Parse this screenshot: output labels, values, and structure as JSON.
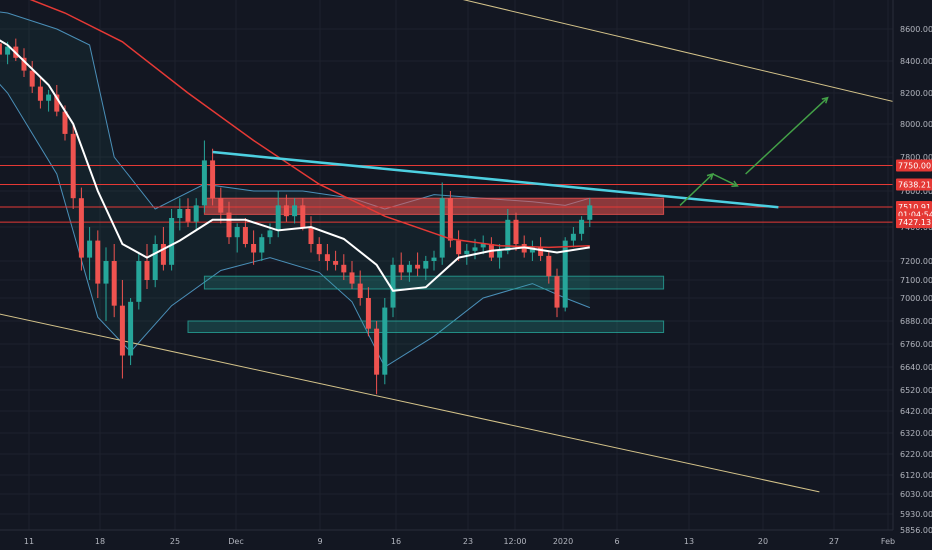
{
  "chart_data": {
    "type": "candlestick",
    "x_ticks": [
      "11",
      "18",
      "25",
      "Dec",
      "9",
      "16",
      "23",
      "12:00",
      "2020",
      "6",
      "13",
      "20",
      "27",
      "Feb"
    ],
    "y_ticks": [
      8600,
      8400,
      8200,
      8000,
      7800,
      7600,
      7400,
      7200,
      7100,
      7000,
      6880,
      6760,
      6640,
      6520,
      6420,
      6320,
      6220,
      6120,
      6030,
      5930,
      5856
    ],
    "y_tick_labels": [
      "8600.00",
      "8400.00",
      "8200.00",
      "8000.00",
      "7800.00",
      "7600.00",
      "7400.00",
      "7200.00",
      "7100.00",
      "7000.00",
      "6880.00",
      "6760.00",
      "6640.00",
      "6520.00",
      "6420.00",
      "6320.00",
      "6220.00",
      "6120.00",
      "6030.00",
      "5930.00",
      "5856.00"
    ],
    "price_badges": [
      {
        "label": "7750.00",
        "value": 7750,
        "color": "#e53935"
      },
      {
        "label": "7638.21",
        "value": 7638,
        "color": "#e53935"
      },
      {
        "label": "7510.91",
        "value": 7511,
        "color": "#e53935"
      },
      {
        "label": "01:04:54",
        "value": 7470,
        "color": "#e53935"
      },
      {
        "label": "7427.13",
        "value": 7427,
        "color": "#e53935"
      }
    ],
    "resistance_levels": [
      7750,
      7638,
      7511,
      7427
    ],
    "zones": [
      {
        "kind": "resistance",
        "from_day": 22,
        "to_day": 78,
        "low": 7470,
        "high": 7560,
        "color": "#ef5350"
      },
      {
        "kind": "support",
        "from_day": 22,
        "to_day": 78,
        "low": 7050,
        "high": 7120,
        "color": "#26a69a"
      },
      {
        "kind": "support",
        "from_day": 20,
        "to_day": 78,
        "low": 6820,
        "high": 6880,
        "color": "#26a69a"
      }
    ],
    "trendline": {
      "from": [
        23,
        7830
      ],
      "to": [
        92,
        7510
      ],
      "color": "#4dd0e1"
    },
    "channel_upper": {
      "from": [
        44,
        8900
      ],
      "to": [
        132,
        7830
      ],
      "color": "#d4c38a"
    },
    "channel_lower": {
      "from": [
        -12,
        7000
      ],
      "to": [
        97,
        6040
      ],
      "color": "#d4c38a"
    },
    "projection_arrows": [
      [
        [
          80,
          7520
        ],
        [
          84,
          7700
        ]
      ],
      [
        [
          84,
          7700
        ],
        [
          87,
          7630
        ]
      ],
      [
        [
          88,
          7700
        ],
        [
          98,
          8170
        ]
      ]
    ],
    "projection_color": "#43a047",
    "candles": [
      [
        -10,
        8700,
        8760,
        8640,
        8690
      ],
      [
        -9,
        8690,
        8720,
        8600,
        8650
      ],
      [
        -8,
        8650,
        8700,
        8560,
        8620
      ],
      [
        -7,
        8620,
        8680,
        8580,
        8600
      ],
      [
        -6,
        8600,
        8650,
        8520,
        8540
      ],
      [
        -5,
        8540,
        8600,
        8480,
        8580
      ],
      [
        -4,
        8580,
        8620,
        8500,
        8510
      ],
      [
        -3,
        8510,
        8560,
        8400,
        8440
      ],
      [
        -2,
        8440,
        8520,
        8380,
        8490
      ],
      [
        -1,
        8490,
        8540,
        8400,
        8420
      ],
      [
        0,
        8420,
        8480,
        8300,
        8340
      ],
      [
        1,
        8340,
        8400,
        8200,
        8240
      ],
      [
        2,
        8240,
        8300,
        8100,
        8150
      ],
      [
        3,
        8150,
        8220,
        8080,
        8190
      ],
      [
        4,
        8190,
        8250,
        8050,
        8080
      ],
      [
        5,
        8080,
        8120,
        7900,
        7940
      ],
      [
        6,
        7940,
        8000,
        7500,
        7560
      ],
      [
        7,
        7560,
        7620,
        7150,
        7220
      ],
      [
        8,
        7220,
        7400,
        7100,
        7320
      ],
      [
        9,
        7320,
        7380,
        7000,
        7080
      ],
      [
        10,
        7080,
        7280,
        6880,
        7200
      ],
      [
        11,
        7200,
        7300,
        6900,
        6960
      ],
      [
        12,
        6960,
        7100,
        6580,
        6700
      ],
      [
        13,
        6700,
        7000,
        6650,
        6980
      ],
      [
        14,
        6980,
        7250,
        6940,
        7200
      ],
      [
        15,
        7200,
        7300,
        7050,
        7100
      ],
      [
        16,
        7100,
        7350,
        7060,
        7300
      ],
      [
        17,
        7300,
        7400,
        7150,
        7180
      ],
      [
        18,
        7180,
        7500,
        7150,
        7450
      ],
      [
        19,
        7450,
        7560,
        7380,
        7500
      ],
      [
        20,
        7500,
        7560,
        7400,
        7430
      ],
      [
        21,
        7430,
        7560,
        7380,
        7520
      ],
      [
        22,
        7520,
        7900,
        7480,
        7780
      ],
      [
        23,
        7780,
        7850,
        7520,
        7560
      ],
      [
        24,
        7560,
        7620,
        7420,
        7480
      ],
      [
        25,
        7480,
        7540,
        7300,
        7340
      ],
      [
        26,
        7340,
        7420,
        7250,
        7400
      ],
      [
        27,
        7400,
        7450,
        7280,
        7300
      ],
      [
        28,
        7300,
        7380,
        7180,
        7250
      ],
      [
        29,
        7250,
        7360,
        7200,
        7340
      ],
      [
        30,
        7340,
        7420,
        7300,
        7380
      ],
      [
        31,
        7380,
        7600,
        7340,
        7520
      ],
      [
        32,
        7520,
        7580,
        7430,
        7460
      ],
      [
        33,
        7460,
        7560,
        7420,
        7520
      ],
      [
        34,
        7520,
        7560,
        7380,
        7400
      ],
      [
        35,
        7400,
        7460,
        7250,
        7300
      ],
      [
        36,
        7300,
        7340,
        7200,
        7240
      ],
      [
        37,
        7240,
        7300,
        7150,
        7200
      ],
      [
        38,
        7200,
        7260,
        7150,
        7180
      ],
      [
        39,
        7180,
        7240,
        7100,
        7140
      ],
      [
        40,
        7140,
        7200,
        7050,
        7080
      ],
      [
        41,
        7080,
        7150,
        6960,
        7000
      ],
      [
        42,
        7000,
        7060,
        6800,
        6840
      ],
      [
        43,
        6840,
        6880,
        6500,
        6600
      ],
      [
        44,
        6600,
        7000,
        6550,
        6950
      ],
      [
        45,
        6950,
        7220,
        6900,
        7180
      ],
      [
        46,
        7180,
        7250,
        7100,
        7140
      ],
      [
        47,
        7140,
        7200,
        7090,
        7180
      ],
      [
        48,
        7180,
        7250,
        7120,
        7160
      ],
      [
        49,
        7160,
        7230,
        7100,
        7200
      ],
      [
        50,
        7200,
        7260,
        7150,
        7220
      ],
      [
        51,
        7220,
        7650,
        7180,
        7560
      ],
      [
        52,
        7560,
        7600,
        7280,
        7320
      ],
      [
        53,
        7320,
        7380,
        7200,
        7240
      ],
      [
        54,
        7240,
        7300,
        7180,
        7260
      ],
      [
        55,
        7260,
        7330,
        7210,
        7280
      ],
      [
        56,
        7280,
        7350,
        7240,
        7300
      ],
      [
        57,
        7300,
        7340,
        7200,
        7220
      ],
      [
        58,
        7220,
        7300,
        7160,
        7260
      ],
      [
        59,
        7260,
        7500,
        7240,
        7440
      ],
      [
        60,
        7440,
        7480,
        7260,
        7300
      ],
      [
        61,
        7300,
        7350,
        7220,
        7250
      ],
      [
        62,
        7250,
        7320,
        7200,
        7280
      ],
      [
        63,
        7280,
        7340,
        7200,
        7230
      ],
      [
        64,
        7230,
        7260,
        7080,
        7120
      ],
      [
        65,
        7120,
        7160,
        6900,
        6950
      ],
      [
        66,
        6950,
        7340,
        6930,
        7320
      ],
      [
        67,
        7320,
        7400,
        7280,
        7360
      ],
      [
        68,
        7360,
        7460,
        7320,
        7440
      ],
      [
        69,
        7440,
        7560,
        7400,
        7520
      ]
    ],
    "sma_fast": [
      [
        -8,
        8680
      ],
      [
        -2,
        8500
      ],
      [
        3,
        8250
      ],
      [
        6,
        8000
      ],
      [
        9,
        7600
      ],
      [
        12,
        7300
      ],
      [
        15,
        7220
      ],
      [
        19,
        7320
      ],
      [
        23,
        7440
      ],
      [
        27,
        7440
      ],
      [
        31,
        7380
      ],
      [
        35,
        7400
      ],
      [
        39,
        7330
      ],
      [
        43,
        7180
      ],
      [
        45,
        7040
      ],
      [
        49,
        7060
      ],
      [
        53,
        7220
      ],
      [
        57,
        7260
      ],
      [
        61,
        7280
      ],
      [
        65,
        7250
      ],
      [
        69,
        7280
      ]
    ],
    "sma_slow": [
      [
        -10,
        8900
      ],
      [
        -2,
        8840
      ],
      [
        5,
        8700
      ],
      [
        12,
        8520
      ],
      [
        20,
        8200
      ],
      [
        28,
        7900
      ],
      [
        36,
        7640
      ],
      [
        44,
        7460
      ],
      [
        52,
        7330
      ],
      [
        58,
        7290
      ],
      [
        64,
        7280
      ],
      [
        69,
        7290
      ]
    ],
    "bb_upper": [
      [
        -8,
        8740
      ],
      [
        -2,
        8700
      ],
      [
        4,
        8600
      ],
      [
        8,
        8500
      ],
      [
        11,
        7800
      ],
      [
        16,
        7500
      ],
      [
        22,
        7640
      ],
      [
        28,
        7600
      ],
      [
        34,
        7600
      ],
      [
        40,
        7560
      ],
      [
        44,
        7500
      ],
      [
        50,
        7580
      ],
      [
        56,
        7560
      ],
      [
        62,
        7540
      ],
      [
        66,
        7520
      ],
      [
        69,
        7560
      ]
    ],
    "bb_lower": [
      [
        -8,
        8540
      ],
      [
        -2,
        8200
      ],
      [
        4,
        7700
      ],
      [
        9,
        6900
      ],
      [
        13,
        6720
      ],
      [
        18,
        6960
      ],
      [
        24,
        7150
      ],
      [
        30,
        7220
      ],
      [
        36,
        7140
      ],
      [
        40,
        6980
      ],
      [
        44,
        6640
      ],
      [
        50,
        6800
      ],
      [
        56,
        7000
      ],
      [
        62,
        7080
      ],
      [
        66,
        7000
      ],
      [
        69,
        6950
      ]
    ]
  },
  "price_scale_colors": {
    "text": "#b2b5be",
    "grid": "#1e222d",
    "bg": "#131722",
    "up": "#26a69a",
    "down": "#ef5350"
  }
}
